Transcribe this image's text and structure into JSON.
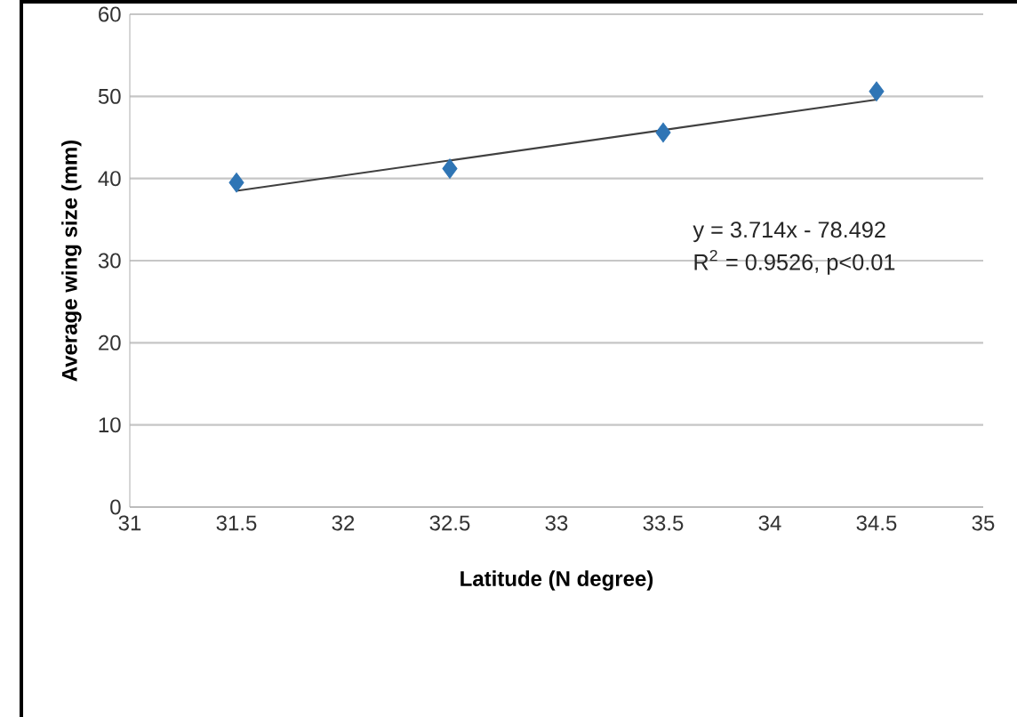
{
  "chart_data": {
    "type": "scatter",
    "xlabel": "Latitude (N degree)",
    "ylabel": "Average wing size (mm)",
    "series": [
      {
        "color": "#2f75b5",
        "marker": "diamond",
        "x": [
          31.5,
          32.5,
          33.5,
          34.5
        ],
        "values": [
          39.5,
          41.2,
          45.6,
          50.6
        ]
      },
      {
        "type": "line",
        "color": "#404040",
        "marker": "none",
        "x": [
          31.5,
          34.5
        ],
        "values": [
          38.5,
          49.6
        ]
      }
    ],
    "xlim": [
      31,
      35
    ],
    "ylim": [
      0,
      60
    ],
    "xticks": [
      31,
      31.5,
      32,
      32.5,
      33,
      33.5,
      34,
      34.5,
      35
    ],
    "yticks": [
      0,
      10,
      20,
      30,
      40,
      50,
      60
    ],
    "grid": "y",
    "annotations": [
      "y = 3.714x - 78.492",
      "R$^{2}$ = 0.9526, p<0.01"
    ]
  }
}
